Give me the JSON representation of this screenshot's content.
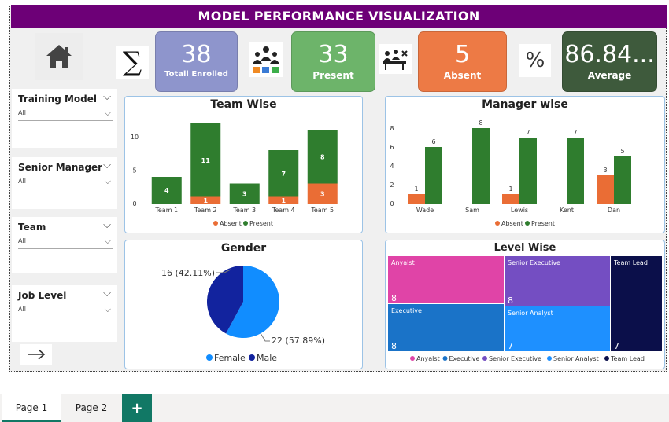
{
  "banner": {
    "title": "MODEL  PERFORMANCE VISUALIZATION"
  },
  "icons": {
    "home": "home-icon",
    "sum": "sigma-icon",
    "present": "people-chart-icon",
    "absent": "meeting-absent-icon",
    "percent": "percent-icon",
    "next": "arrow-right-icon"
  },
  "kpis": {
    "enrolled": {
      "value": "38",
      "label": "Totall Enrolled",
      "color": "#8e95cc"
    },
    "present": {
      "value": "33",
      "label": "Present",
      "color": "#6db46a"
    },
    "absent": {
      "value": "5",
      "label": "Absent",
      "color": "#ed7a45"
    },
    "average": {
      "value": "86.84...",
      "label": "Average",
      "color": "#3e5a3c"
    }
  },
  "slicers": [
    {
      "title": "Training Model",
      "value": "All"
    },
    {
      "title": "Senior Manager",
      "value": "All"
    },
    {
      "title": "Team",
      "value": "All"
    },
    {
      "title": "Job Level",
      "value": "All"
    }
  ],
  "legend_two": {
    "absent": "Absent",
    "present": "Present"
  },
  "colors": {
    "absent": "#ea6d35",
    "present": "#2f7d2e"
  },
  "chart_data": [
    {
      "type": "bar",
      "title": "Team Wise",
      "stacked": true,
      "categories": [
        "Team 1",
        "Team 2",
        "Team 3",
        "Team 4",
        "Team 5"
      ],
      "series": [
        {
          "name": "Absent",
          "values": [
            0,
            1,
            0,
            1,
            3
          ]
        },
        {
          "name": "Present",
          "values": [
            4,
            11,
            3,
            7,
            8
          ]
        }
      ],
      "yticks": [
        0,
        5,
        10
      ],
      "ylim": [
        0,
        12
      ],
      "legend": "bottom"
    },
    {
      "type": "bar",
      "title": "Manager wise",
      "stacked": false,
      "categories": [
        "Wade",
        "Sam",
        "Lewis",
        "Kent",
        "Dan"
      ],
      "series": [
        {
          "name": "Absent",
          "values": [
            1,
            0,
            1,
            0,
            3
          ]
        },
        {
          "name": "Present",
          "values": [
            6,
            8,
            7,
            7,
            5
          ]
        }
      ],
      "yticks": [
        0,
        2,
        4,
        6,
        8
      ],
      "ylim": [
        0,
        8
      ],
      "legend": "bottom"
    },
    {
      "type": "pie",
      "title": "Gender",
      "slices": [
        {
          "name": "Female",
          "value": 22,
          "label": "22 (57.89%)",
          "color": "#118dff"
        },
        {
          "name": "Male",
          "value": 16,
          "label": "16 (42.11%)",
          "color": "#12239e"
        }
      ],
      "legend": "bottom"
    },
    {
      "type": "treemap",
      "title": "Level Wise",
      "items": [
        {
          "name": "Anyalst",
          "value": 8,
          "color": "#e044a7"
        },
        {
          "name": "Executive",
          "value": 8,
          "color": "#1a73c8"
        },
        {
          "name": "Senior Executive",
          "value": 8,
          "color": "#744ec2"
        },
        {
          "name": "Senior Analyst",
          "value": 7,
          "color": "#1e90ff"
        },
        {
          "name": "Team Lead",
          "value": 7,
          "color": "#0b0f4a"
        }
      ],
      "legend": "bottom"
    }
  ],
  "tabs": [
    {
      "label": "Page 1",
      "active": true
    },
    {
      "label": "Page 2",
      "active": false
    }
  ],
  "add_page": "+"
}
